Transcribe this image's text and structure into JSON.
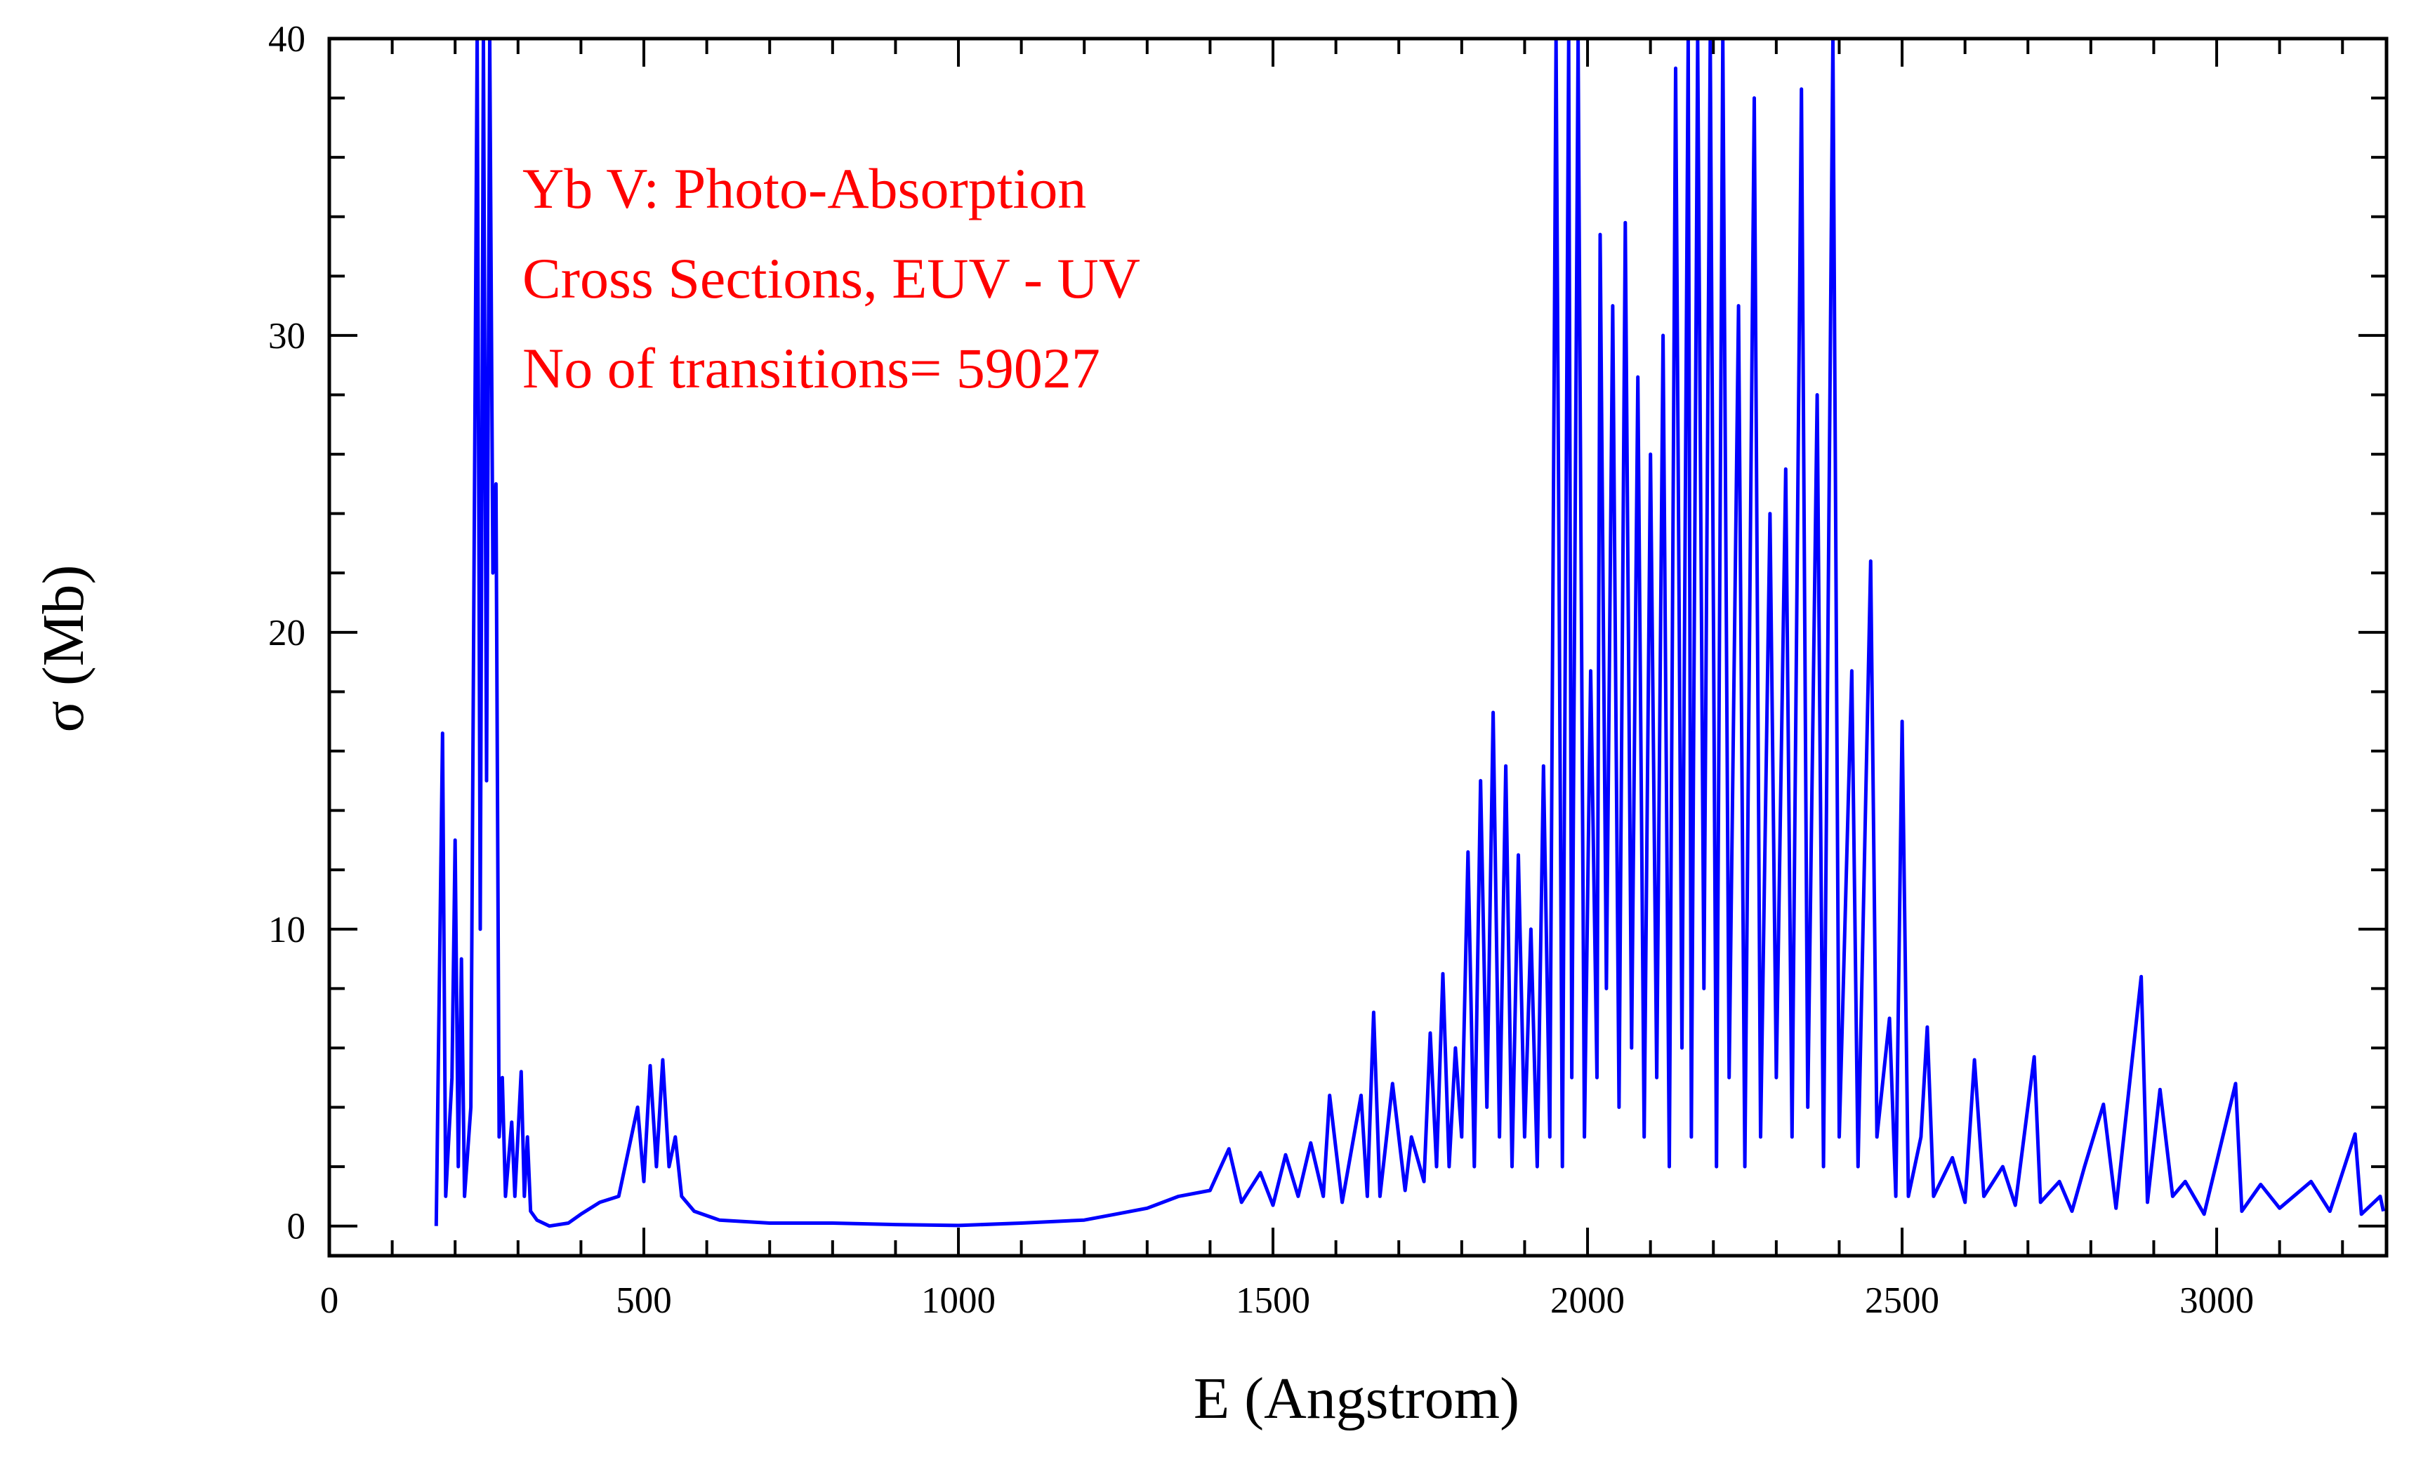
{
  "chart_data": {
    "type": "line",
    "xlabel": "E (Angstrom)",
    "ylabel": "σ (Mb)",
    "annotations": [
      "Yb V: Photo-Absorption",
      "Cross Sections, EUV - UV",
      "No of transitions= 59027"
    ],
    "annotation_color": "#ff0000",
    "color": "#0000ff",
    "xlim": [
      0,
      3270
    ],
    "ylim": [
      -1,
      40
    ],
    "xticks": [
      0,
      500,
      1000,
      1500,
      2000,
      2500,
      3000
    ],
    "yticks": [
      0,
      10,
      20,
      30,
      40
    ],
    "xminorticks": [
      100,
      200,
      300,
      400,
      600,
      700,
      800,
      900,
      1100,
      1200,
      1300,
      1400,
      1600,
      1700,
      1800,
      1900,
      2100,
      2200,
      2300,
      2400,
      2600,
      2700,
      2800,
      2900,
      3100,
      3200
    ],
    "yminorticks": [
      2,
      4,
      6,
      8,
      12,
      14,
      16,
      18,
      22,
      24,
      26,
      28,
      32,
      34,
      36,
      38
    ],
    "x": [
      170,
      180,
      185,
      195,
      200,
      205,
      210,
      215,
      225,
      235,
      240,
      245,
      250,
      255,
      260,
      265,
      270,
      275,
      280,
      290,
      295,
      305,
      310,
      315,
      320,
      330,
      350,
      380,
      400,
      430,
      460,
      490,
      500,
      510,
      520,
      530,
      540,
      550,
      560,
      580,
      620,
      700,
      800,
      900,
      1000,
      1100,
      1200,
      1250,
      1300,
      1350,
      1400,
      1430,
      1450,
      1480,
      1500,
      1520,
      1540,
      1560,
      1580,
      1590,
      1610,
      1640,
      1650,
      1660,
      1670,
      1690,
      1710,
      1720,
      1740,
      1750,
      1760,
      1770,
      1780,
      1790,
      1800,
      1810,
      1820,
      1830,
      1840,
      1850,
      1860,
      1870,
      1880,
      1890,
      1900,
      1910,
      1920,
      1930,
      1940,
      1950,
      1960,
      1970,
      1975,
      1985,
      1995,
      2005,
      2015,
      2020,
      2030,
      2040,
      2050,
      2060,
      2070,
      2080,
      2090,
      2100,
      2110,
      2120,
      2130,
      2140,
      2150,
      2160,
      2165,
      2175,
      2185,
      2195,
      2205,
      2215,
      2225,
      2240,
      2250,
      2265,
      2275,
      2290,
      2300,
      2315,
      2325,
      2340,
      2350,
      2365,
      2375,
      2390,
      2400,
      2420,
      2430,
      2450,
      2460,
      2480,
      2490,
      2500,
      2510,
      2530,
      2540,
      2550,
      2580,
      2600,
      2615,
      2630,
      2660,
      2680,
      2710,
      2720,
      2750,
      2770,
      2790,
      2820,
      2840,
      2880,
      2890,
      2910,
      2930,
      2950,
      2980,
      3030,
      3040,
      3070,
      3100,
      3150,
      3180,
      3220,
      3230,
      3260,
      3265
    ],
    "values": [
      0,
      16.6,
      1,
      5,
      13,
      2,
      9,
      1,
      4,
      40,
      10,
      40,
      15,
      40,
      22,
      25,
      3,
      5,
      1,
      3.5,
      1,
      5.2,
      1,
      3,
      0.5,
      0.2,
      0,
      0.1,
      0.4,
      0.8,
      1,
      4,
      1.5,
      5.4,
      2,
      5.6,
      2,
      3,
      1,
      0.5,
      0.2,
      0.1,
      0.1,
      0.05,
      0.02,
      0.1,
      0.2,
      0.4,
      0.6,
      1,
      1.2,
      2.6,
      0.8,
      1.8,
      0.7,
      2.4,
      1,
      2.8,
      1,
      4.4,
      0.8,
      4.4,
      1,
      7.2,
      1,
      4.8,
      1.2,
      3,
      1.5,
      6.5,
      2,
      8.5,
      2,
      6,
      3,
      12.6,
      2,
      15,
      4,
      17.3,
      3,
      15.5,
      2,
      12.5,
      3,
      10,
      2,
      15.5,
      3,
      40,
      2,
      40,
      5,
      40,
      3,
      18.7,
      5,
      33.4,
      8,
      31,
      4,
      33.8,
      6,
      28.6,
      3,
      26,
      5,
      30,
      2,
      39,
      6,
      40,
      3,
      40,
      8,
      40,
      2,
      40,
      5,
      31,
      2,
      38,
      3,
      24,
      5,
      25.5,
      3,
      38.3,
      4,
      28,
      2,
      40,
      3,
      18.7,
      2,
      22.4,
      3,
      7,
      1,
      17,
      1,
      3,
      6.7,
      1,
      2.3,
      0.8,
      5.6,
      1,
      2,
      0.7,
      5.7,
      0.8,
      1.5,
      0.5,
      2,
      4.1,
      0.6,
      8.4,
      0.8,
      4.6,
      1,
      1.5,
      0.4,
      4.8,
      0.5,
      1.4,
      0.6,
      1.5,
      0.5,
      3.1,
      0.4,
      1,
      0.5
    ]
  }
}
